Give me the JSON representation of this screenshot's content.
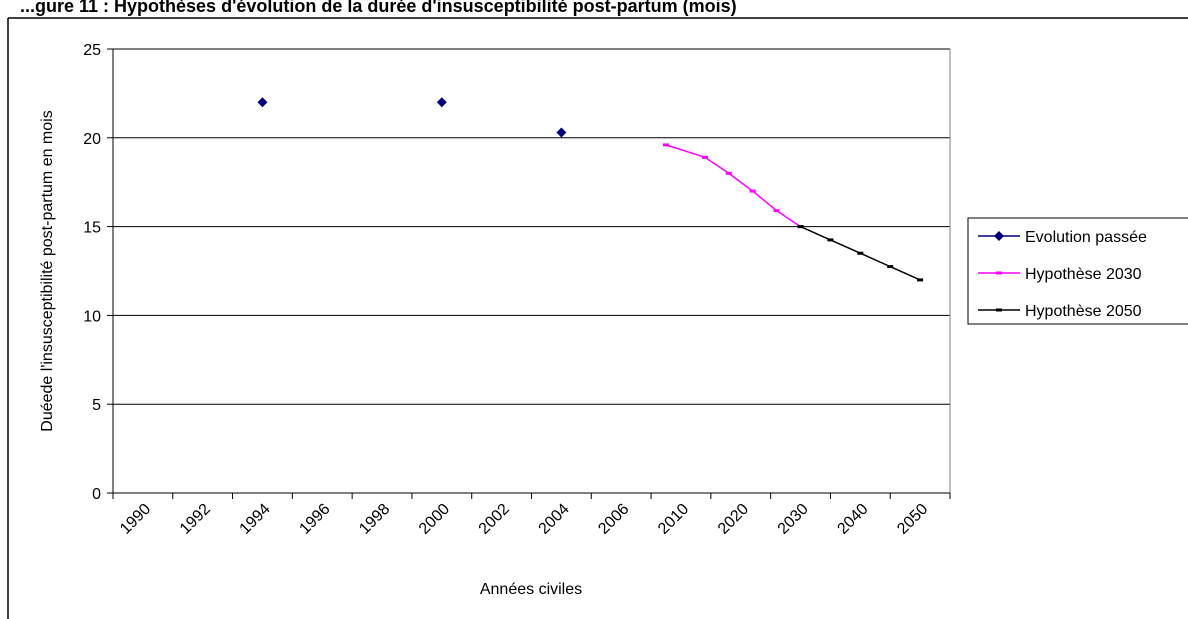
{
  "chart_data": {
    "type": "line",
    "title": "",
    "xlabel": "Années civiles",
    "ylabel": "Duéede l'insusceptibilité post-partum en mois",
    "ylim": [
      0,
      25
    ],
    "yticks": [
      0,
      5,
      10,
      15,
      20,
      25
    ],
    "categories": [
      "1990",
      "1992",
      "1994",
      "1996",
      "1998",
      "2000",
      "2002",
      "2004",
      "2006",
      "2010",
      "2020",
      "2030",
      "2040",
      "2050"
    ],
    "grid": "horizontal",
    "legend_position": "right",
    "series": [
      {
        "name": "Evolution passée",
        "style": "markers-diamond",
        "color": "#000080",
        "points": [
          {
            "x": "1994",
            "y": 22.0
          },
          {
            "x": "2000",
            "y": 22.0
          },
          {
            "x": "2004",
            "y": 20.3
          }
        ]
      },
      {
        "name": "Hypothèse 2030",
        "style": "line-dash-markers",
        "color": "#ff00ff",
        "points": [
          {
            "x": "2009",
            "y": 19.6
          },
          {
            "x": "2014",
            "y": 18.9
          },
          {
            "x": "2018",
            "y": 18.0
          },
          {
            "x": "2022",
            "y": 17.0
          },
          {
            "x": "2026",
            "y": 15.9
          },
          {
            "x": "2030",
            "y": 15.0
          }
        ]
      },
      {
        "name": "Hypothèse 2050",
        "style": "line-dash-markers",
        "color": "#000000",
        "points": [
          {
            "x": "2030",
            "y": 15.0
          },
          {
            "x": "2035",
            "y": 14.25
          },
          {
            "x": "2040",
            "y": 13.5
          },
          {
            "x": "2045",
            "y": 12.75
          },
          {
            "x": "2050",
            "y": 12.0
          }
        ]
      }
    ]
  },
  "title_fragment": "...gure 11 : Hypothèses d'évolution de la durée d'insusceptibilité post-partum (mois)",
  "colors": {
    "grid": "#000000",
    "plot_border": "#808080",
    "background": "#ffffff"
  }
}
